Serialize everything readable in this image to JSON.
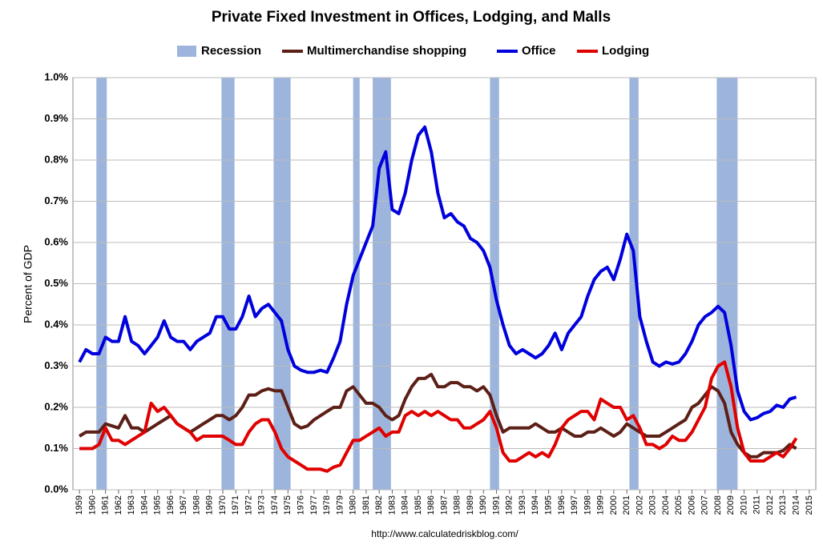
{
  "chart_data": {
    "type": "line",
    "title": "Private Fixed Investment in Offices, Lodging, and Malls",
    "y_label": "Percent of GDP",
    "source": "http://www.calculatedriskblog.com/",
    "legend": "top",
    "grid": true,
    "xlim": [
      1958.5,
      2015.5
    ],
    "xticks": [
      1959,
      1960,
      1961,
      1962,
      1963,
      1964,
      1965,
      1966,
      1967,
      1968,
      1969,
      1970,
      1971,
      1972,
      1973,
      1974,
      1975,
      1976,
      1977,
      1978,
      1979,
      1980,
      1981,
      1982,
      1983,
      1984,
      1985,
      1986,
      1987,
      1988,
      1989,
      1990,
      1991,
      1992,
      1993,
      1994,
      1995,
      1996,
      1997,
      1998,
      1999,
      2000,
      2001,
      2002,
      2003,
      2004,
      2005,
      2006,
      2007,
      2008,
      2009,
      2010,
      2011,
      2012,
      2013,
      2014,
      2015
    ],
    "ylim": [
      0,
      1.0
    ],
    "yticks": [
      {
        "value": 0,
        "label": "0.0%"
      },
      {
        "value": 0.1,
        "label": "0.1%"
      },
      {
        "value": 0.2,
        "label": "0.2%"
      },
      {
        "value": 0.3,
        "label": "0.3%"
      },
      {
        "value": 0.4,
        "label": "0.4%"
      },
      {
        "value": 0.5,
        "label": "0.5%"
      },
      {
        "value": 0.6,
        "label": "0.6%"
      },
      {
        "value": 0.7,
        "label": "0.7%"
      },
      {
        "value": 0.8,
        "label": "0.8%"
      },
      {
        "value": 0.9,
        "label": "0.9%"
      },
      {
        "value": 1.0,
        "label": "1.0%"
      }
    ],
    "recessions": {
      "name": "Recession",
      "color": "#9db5dc",
      "spans": [
        {
          "start": 1960.3,
          "end": 1961.1
        },
        {
          "start": 1969.9,
          "end": 1970.9
        },
        {
          "start": 1973.9,
          "end": 1975.2
        },
        {
          "start": 1980.0,
          "end": 1980.5
        },
        {
          "start": 1981.5,
          "end": 1982.9
        },
        {
          "start": 1990.5,
          "end": 1991.2
        },
        {
          "start": 2001.2,
          "end": 2001.9
        },
        {
          "start": 2007.9,
          "end": 2009.5
        }
      ]
    },
    "x": [
      1959,
      1959.5,
      1960,
      1960.5,
      1961,
      1961.5,
      1962,
      1962.5,
      1963,
      1963.5,
      1964,
      1964.5,
      1965,
      1965.5,
      1966,
      1966.5,
      1967,
      1967.5,
      1968,
      1968.5,
      1969,
      1969.5,
      1970,
      1970.5,
      1971,
      1971.5,
      1972,
      1972.5,
      1973,
      1973.5,
      1974,
      1974.5,
      1975,
      1975.5,
      1976,
      1976.5,
      1977,
      1977.5,
      1978,
      1978.5,
      1979,
      1979.5,
      1980,
      1980.5,
      1981,
      1981.5,
      1982,
      1982.5,
      1983,
      1983.5,
      1984,
      1984.5,
      1985,
      1985.5,
      1986,
      1986.5,
      1987,
      1987.5,
      1988,
      1988.5,
      1989,
      1989.5,
      1990,
      1990.5,
      1991,
      1991.5,
      1992,
      1992.5,
      1993,
      1993.5,
      1994,
      1994.5,
      1995,
      1995.5,
      1996,
      1996.5,
      1997,
      1997.5,
      1998,
      1998.5,
      1999,
      1999.5,
      2000,
      2000.5,
      2001,
      2001.5,
      2002,
      2002.5,
      2003,
      2003.5,
      2004,
      2004.5,
      2005,
      2005.5,
      2006,
      2006.5,
      2007,
      2007.5,
      2008,
      2008.5,
      2009,
      2009.5,
      2010,
      2010.5,
      2011,
      2011.5,
      2012,
      2012.5,
      2013,
      2013.5,
      2014
    ],
    "series": [
      {
        "name": "Multimerchandise shopping",
        "color": "#5c1f16",
        "values": [
          0.13,
          0.14,
          0.14,
          0.14,
          0.16,
          0.155,
          0.15,
          0.18,
          0.15,
          0.15,
          0.14,
          0.15,
          0.16,
          0.17,
          0.18,
          0.16,
          0.15,
          0.14,
          0.15,
          0.16,
          0.17,
          0.18,
          0.18,
          0.17,
          0.18,
          0.2,
          0.23,
          0.23,
          0.24,
          0.245,
          0.24,
          0.24,
          0.2,
          0.16,
          0.15,
          0.155,
          0.17,
          0.18,
          0.19,
          0.2,
          0.2,
          0.24,
          0.25,
          0.23,
          0.21,
          0.21,
          0.2,
          0.18,
          0.17,
          0.18,
          0.22,
          0.25,
          0.27,
          0.27,
          0.28,
          0.25,
          0.25,
          0.26,
          0.26,
          0.25,
          0.25,
          0.24,
          0.25,
          0.23,
          0.18,
          0.14,
          0.15,
          0.15,
          0.15,
          0.15,
          0.16,
          0.15,
          0.14,
          0.14,
          0.15,
          0.14,
          0.13,
          0.13,
          0.14,
          0.14,
          0.15,
          0.14,
          0.13,
          0.14,
          0.16,
          0.15,
          0.14,
          0.13,
          0.13,
          0.13,
          0.14,
          0.15,
          0.16,
          0.17,
          0.2,
          0.21,
          0.23,
          0.25,
          0.24,
          0.21,
          0.14,
          0.11,
          0.09,
          0.08,
          0.08,
          0.09,
          0.09,
          0.09,
          0.095,
          0.11,
          0.1
        ]
      },
      {
        "name": "Office",
        "color": "#0000dd",
        "values": [
          0.31,
          0.34,
          0.33,
          0.33,
          0.37,
          0.36,
          0.36,
          0.42,
          0.36,
          0.35,
          0.33,
          0.35,
          0.37,
          0.41,
          0.37,
          0.36,
          0.36,
          0.34,
          0.36,
          0.37,
          0.38,
          0.42,
          0.42,
          0.39,
          0.39,
          0.42,
          0.47,
          0.42,
          0.44,
          0.45,
          0.43,
          0.41,
          0.34,
          0.3,
          0.29,
          0.285,
          0.285,
          0.29,
          0.285,
          0.32,
          0.36,
          0.45,
          0.52,
          0.56,
          0.6,
          0.64,
          0.78,
          0.82,
          0.68,
          0.67,
          0.72,
          0.8,
          0.86,
          0.88,
          0.82,
          0.72,
          0.66,
          0.67,
          0.65,
          0.64,
          0.61,
          0.6,
          0.58,
          0.54,
          0.46,
          0.4,
          0.35,
          0.33,
          0.34,
          0.33,
          0.32,
          0.33,
          0.35,
          0.38,
          0.34,
          0.38,
          0.4,
          0.42,
          0.47,
          0.51,
          0.53,
          0.54,
          0.51,
          0.56,
          0.62,
          0.58,
          0.42,
          0.36,
          0.31,
          0.3,
          0.31,
          0.305,
          0.31,
          0.33,
          0.36,
          0.4,
          0.42,
          0.43,
          0.445,
          0.43,
          0.35,
          0.24,
          0.19,
          0.17,
          0.175,
          0.185,
          0.19,
          0.205,
          0.2,
          0.22,
          0.225
        ]
      },
      {
        "name": "Lodging",
        "color": "#e00000",
        "values": [
          0.1,
          0.1,
          0.1,
          0.11,
          0.15,
          0.12,
          0.12,
          0.11,
          0.12,
          0.13,
          0.14,
          0.21,
          0.19,
          0.2,
          0.18,
          0.16,
          0.15,
          0.14,
          0.12,
          0.13,
          0.13,
          0.13,
          0.13,
          0.12,
          0.11,
          0.11,
          0.14,
          0.16,
          0.17,
          0.17,
          0.14,
          0.1,
          0.08,
          0.07,
          0.06,
          0.05,
          0.05,
          0.05,
          0.045,
          0.055,
          0.06,
          0.09,
          0.12,
          0.12,
          0.13,
          0.14,
          0.15,
          0.13,
          0.14,
          0.14,
          0.18,
          0.19,
          0.18,
          0.19,
          0.18,
          0.19,
          0.18,
          0.17,
          0.17,
          0.15,
          0.15,
          0.16,
          0.17,
          0.19,
          0.15,
          0.09,
          0.07,
          0.07,
          0.08,
          0.09,
          0.08,
          0.09,
          0.08,
          0.11,
          0.15,
          0.17,
          0.18,
          0.19,
          0.19,
          0.17,
          0.22,
          0.21,
          0.2,
          0.2,
          0.17,
          0.18,
          0.15,
          0.11,
          0.11,
          0.1,
          0.11,
          0.13,
          0.12,
          0.12,
          0.14,
          0.17,
          0.2,
          0.27,
          0.3,
          0.31,
          0.25,
          0.15,
          0.09,
          0.07,
          0.07,
          0.07,
          0.08,
          0.09,
          0.08,
          0.1,
          0.125
        ]
      }
    ]
  }
}
